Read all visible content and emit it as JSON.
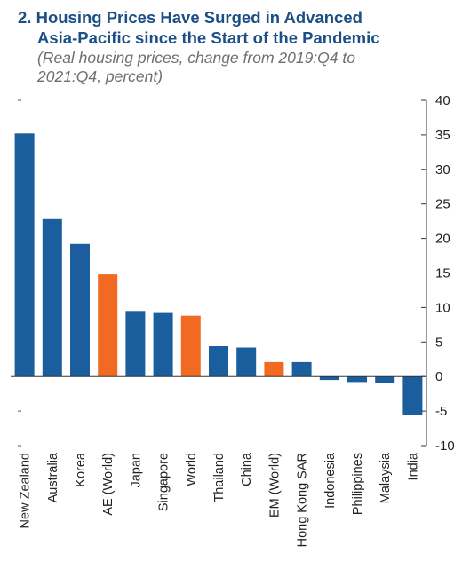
{
  "chart_data": {
    "type": "bar",
    "title_prefix": "2.",
    "title_line1": "Housing Prices Have Surged in Advanced",
    "title_line2": "Asia-Pacific since the Start of the Pandemic",
    "subtitle_line1": "(Real housing prices, change from 2019:Q4 to",
    "subtitle_line2": "2021:Q4, percent)",
    "categories": [
      "New Zealand",
      "Australia",
      "Korea",
      "AE (World)",
      "Japan",
      "Singapore",
      "World",
      "Thailand",
      "China",
      "EM (World)",
      "Hong Kong SAR",
      "Indonesia",
      "Philippines",
      "Malaysia",
      "India"
    ],
    "values": [
      35.2,
      22.8,
      19.2,
      14.8,
      9.5,
      9.2,
      8.8,
      4.4,
      4.2,
      2.1,
      2.1,
      -0.5,
      -0.8,
      -0.9,
      -5.6
    ],
    "highlight": [
      false,
      false,
      false,
      true,
      false,
      false,
      true,
      false,
      false,
      true,
      false,
      false,
      false,
      false,
      false
    ],
    "colors": {
      "bar": "#1b5e9e",
      "highlight": "#f26a21",
      "title": "#1b4f86",
      "subtitle": "#6f6f6f"
    },
    "ylim": [
      -10,
      40
    ],
    "yticks": [
      -10,
      -5,
      0,
      5,
      10,
      15,
      20,
      25,
      30,
      35,
      40
    ],
    "ytick_labels": [
      "-10",
      "-5",
      "0",
      "5",
      "10",
      "15",
      "20",
      "25",
      "30",
      "35",
      "40"
    ],
    "axis_position": "right",
    "grid": false
  }
}
